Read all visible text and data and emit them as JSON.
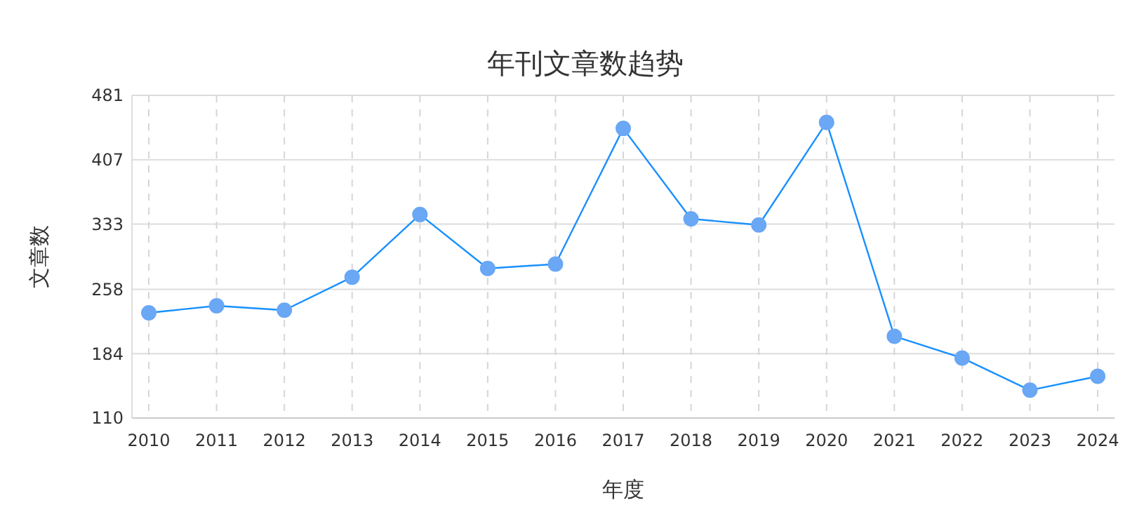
{
  "chart_data": {
    "type": "line",
    "title": "年刊文章数趋势",
    "xlabel": "年度",
    "ylabel": "文章数",
    "categories": [
      "2010",
      "2011",
      "2012",
      "2013",
      "2014",
      "2015",
      "2016",
      "2017",
      "2018",
      "2019",
      "2020",
      "2021",
      "2022",
      "2023",
      "2024"
    ],
    "series": [
      {
        "color": "#1890ff",
        "values": [
          231,
          239,
          234,
          272,
          344,
          282,
          287,
          443,
          339,
          332,
          450,
          204,
          179,
          142,
          158
        ]
      }
    ],
    "ylim": [
      110,
      481
    ],
    "yticks": [
      110,
      184,
      258,
      333,
      407,
      481
    ],
    "grid": true,
    "marker": "circle",
    "line_style": "solid"
  }
}
